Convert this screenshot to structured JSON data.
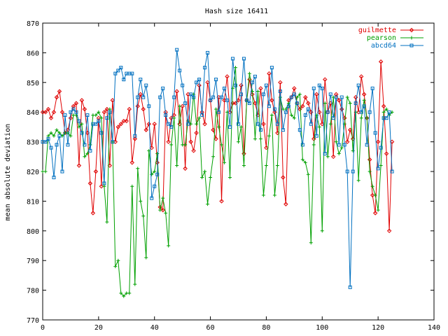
{
  "chart_data": {
    "type": "line",
    "title": "Hash size 16411",
    "xlabel": "",
    "ylabel": "mean absolute deviation",
    "xlim": [
      0,
      140
    ],
    "ylim": [
      770,
      870
    ],
    "x_ticks": [
      "0",
      "20",
      "40",
      "60",
      "80",
      "100",
      "120",
      "140"
    ],
    "y_ticks": [
      "770",
      "780",
      "790",
      "800",
      "810",
      "820",
      "830",
      "840",
      "850",
      "860",
      "870"
    ],
    "grid": false,
    "legend_position": "top-right",
    "series": [
      {
        "name": "guilmette",
        "color": "#e00000",
        "marker": "diamond",
        "values": [
          840,
          840,
          841,
          838,
          840,
          845,
          847,
          840,
          833,
          834,
          838,
          842,
          843,
          822,
          844,
          841,
          833,
          816,
          806,
          820,
          838,
          815,
          840,
          841,
          822,
          844,
          830,
          835,
          836,
          837,
          837,
          841,
          823,
          831,
          842,
          846,
          841,
          834,
          836,
          828,
          836,
          823,
          808,
          807,
          840,
          830,
          838,
          839,
          847,
          836,
          842,
          821,
          846,
          830,
          827,
          833,
          849,
          840,
          836,
          850,
          844,
          834,
          831,
          845,
          810,
          844,
          852,
          840,
          843,
          843,
          844,
          849,
          826,
          844,
          851,
          846,
          843,
          839,
          848,
          836,
          828,
          853,
          844,
          840,
          833,
          850,
          818,
          809,
          844,
          845,
          848,
          843,
          841,
          842,
          845,
          843,
          840,
          831,
          846,
          840,
          836,
          851,
          840,
          843,
          825,
          846,
          844,
          841,
          838,
          830,
          834,
          831,
          845,
          840,
          852,
          846,
          838,
          824,
          812,
          806,
          830,
          857,
          842,
          826,
          800,
          830
        ]
      },
      {
        "name": "pearson",
        "color": "#00a000",
        "marker": "plus",
        "values": [
          820,
          820,
          832,
          833,
          832,
          834,
          833,
          832,
          833,
          833,
          832,
          839,
          839,
          835,
          836,
          825,
          826,
          829,
          839,
          839,
          840,
          838,
          815,
          803,
          841,
          830,
          788,
          790,
          779,
          778,
          779,
          779,
          815,
          782,
          821,
          810,
          805,
          791,
          827,
          819,
          820,
          826,
          807,
          811,
          806,
          795,
          829,
          838,
          822,
          842,
          829,
          829,
          837,
          836,
          846,
          836,
          838,
          818,
          820,
          809,
          818,
          825,
          841,
          835,
          829,
          823,
          840,
          818,
          848,
          855,
          830,
          835,
          822,
          844,
          853,
          847,
          831,
          847,
          831,
          812,
          822,
          832,
          839,
          812,
          822,
          845,
          841,
          841,
          843,
          839,
          838,
          845,
          846,
          824,
          823,
          819,
          796,
          829,
          839,
          835,
          800,
          843,
          825,
          836,
          845,
          830,
          826,
          828,
          836,
          845,
          843,
          827,
          840,
          817,
          838,
          844,
          838,
          820,
          815,
          812,
          807,
          822,
          840,
          841,
          839,
          840
        ]
      },
      {
        "name": "abcd64",
        "color": "#0070c0",
        "marker": "square",
        "values": [
          830,
          830,
          831,
          828,
          818,
          829,
          832,
          820,
          839,
          829,
          840,
          841,
          840,
          837,
          833,
          829,
          839,
          827,
          836,
          836,
          837,
          833,
          816,
          838,
          840,
          830,
          853,
          854,
          855,
          851,
          853,
          853,
          853,
          832,
          845,
          851,
          845,
          849,
          842,
          811,
          815,
          819,
          845,
          848,
          839,
          836,
          835,
          845,
          861,
          854,
          849,
          843,
          836,
          846,
          845,
          850,
          851,
          839,
          855,
          860,
          844,
          845,
          851,
          840,
          845,
          848,
          844,
          835,
          858,
          849,
          836,
          846,
          858,
          844,
          843,
          850,
          852,
          836,
          834,
          846,
          849,
          842,
          855,
          841,
          836,
          847,
          834,
          840,
          842,
          845,
          846,
          843,
          834,
          829,
          839,
          841,
          836,
          848,
          832,
          849,
          848,
          826,
          840,
          846,
          838,
          845,
          829,
          845,
          829,
          820,
          781,
          820,
          843,
          849,
          840,
          842,
          829,
          840,
          848,
          833,
          821,
          828,
          838,
          838,
          840,
          820
        ]
      }
    ]
  }
}
